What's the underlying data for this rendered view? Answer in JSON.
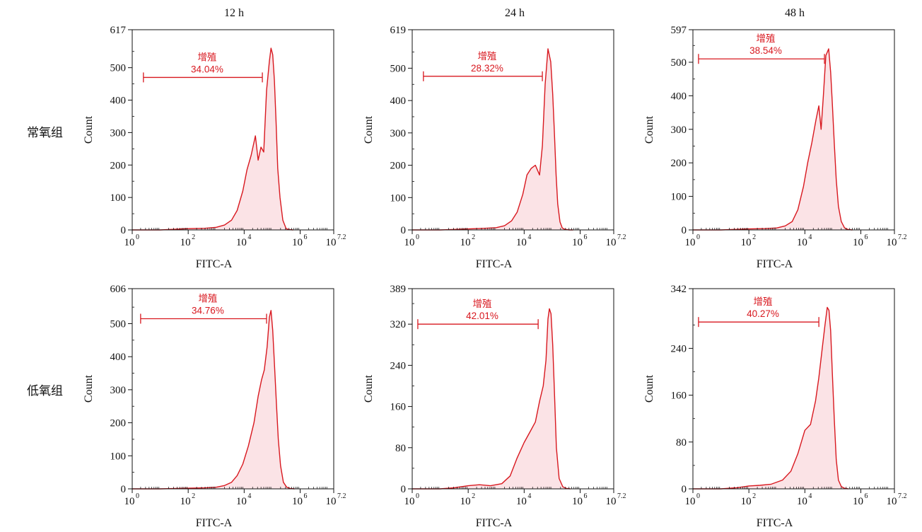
{
  "figure": {
    "column_titles": [
      "12 h",
      "24 h",
      "48 h"
    ],
    "row_labels": [
      "常氧组",
      "低氧组"
    ]
  },
  "chart_data": [
    {
      "type": "area",
      "row": "常氧组",
      "column": "12 h",
      "xlabel": "FITC-A",
      "ylabel": "Count",
      "x_scale": "log10",
      "xlim": [
        0,
        7.2
      ],
      "ylim": [
        0,
        617
      ],
      "yticks": [
        0,
        100,
        200,
        300,
        400,
        500,
        617
      ],
      "xticks": [
        0,
        2,
        4,
        6,
        7.2
      ],
      "gate": {
        "name": "增殖",
        "percent": "34.04%",
        "x_range": [
          0.4,
          4.65
        ],
        "y": 470
      },
      "series": [
        {
          "x": [
            0,
            1.0,
            2.0,
            2.6,
            3.0,
            3.3,
            3.55,
            3.75,
            3.95,
            4.1,
            4.25,
            4.4,
            4.5,
            4.6,
            4.7,
            4.8,
            4.9,
            4.96,
            5.02,
            5.08,
            5.14,
            5.2,
            5.28,
            5.38,
            5.5,
            5.6,
            5.75
          ],
          "y": [
            0,
            0,
            4,
            5,
            8,
            15,
            30,
            60,
            120,
            185,
            230,
            290,
            215,
            255,
            240,
            430,
            520,
            560,
            540,
            460,
            330,
            190,
            100,
            30,
            4,
            1,
            0
          ]
        }
      ]
    },
    {
      "type": "area",
      "row": "常氧组",
      "column": "24 h",
      "xlabel": "FITC-A",
      "ylabel": "Count",
      "x_scale": "log10",
      "xlim": [
        0,
        7.2
      ],
      "ylim": [
        0,
        619
      ],
      "yticks": [
        0,
        100,
        200,
        300,
        400,
        500,
        619
      ],
      "xticks": [
        0,
        2,
        4,
        6,
        7.2
      ],
      "gate": {
        "name": "增殖",
        "percent": "28.32%",
        "x_range": [
          0.4,
          4.65
        ],
        "y": 475
      },
      "series": [
        {
          "x": [
            0,
            1.0,
            2.0,
            2.6,
            3.0,
            3.3,
            3.55,
            3.75,
            3.95,
            4.1,
            4.25,
            4.4,
            4.55,
            4.65,
            4.75,
            4.85,
            4.95,
            5.02,
            5.08,
            5.14,
            5.2,
            5.28,
            5.36,
            5.45,
            5.6,
            5.75
          ],
          "y": [
            0,
            0,
            3,
            5,
            7,
            13,
            28,
            55,
            110,
            170,
            190,
            200,
            170,
            260,
            450,
            560,
            520,
            420,
            300,
            170,
            80,
            25,
            6,
            2,
            0,
            0
          ]
        }
      ]
    },
    {
      "type": "area",
      "row": "常氧组",
      "column": "48 h",
      "xlabel": "FITC-A",
      "ylabel": "Count",
      "x_scale": "log10",
      "xlim": [
        0,
        7.2
      ],
      "ylim": [
        0,
        597
      ],
      "yticks": [
        0,
        100,
        200,
        300,
        400,
        500,
        597
      ],
      "xticks": [
        0,
        2,
        4,
        6,
        7.2
      ],
      "gate": {
        "name": "增殖",
        "percent": "38.54%",
        "x_range": [
          0.2,
          4.7
        ],
        "y": 510
      },
      "series": [
        {
          "x": [
            0,
            1.0,
            2.0,
            2.6,
            3.0,
            3.3,
            3.55,
            3.75,
            3.95,
            4.1,
            4.25,
            4.4,
            4.5,
            4.58,
            4.66,
            4.75,
            4.85,
            4.92,
            4.98,
            5.05,
            5.12,
            5.2,
            5.3,
            5.42,
            5.55,
            5.7
          ],
          "y": [
            0,
            0,
            3,
            4,
            6,
            12,
            25,
            60,
            130,
            200,
            260,
            330,
            370,
            300,
            400,
            520,
            540,
            470,
            380,
            260,
            150,
            70,
            25,
            6,
            1,
            0
          ]
        }
      ]
    },
    {
      "type": "area",
      "row": "低氧组",
      "column": "12 h",
      "xlabel": "FITC-A",
      "ylabel": "Count",
      "x_scale": "log10",
      "xlim": [
        0,
        7.2
      ],
      "ylim": [
        0,
        606
      ],
      "yticks": [
        0,
        100,
        200,
        300,
        400,
        500,
        606
      ],
      "xticks": [
        0,
        2,
        4,
        6,
        7.2
      ],
      "gate": {
        "name": "增殖",
        "percent": "34.76%",
        "x_range": [
          0.3,
          4.8
        ],
        "y": 515
      },
      "series": [
        {
          "x": [
            0,
            1.0,
            2.0,
            2.6,
            3.0,
            3.3,
            3.55,
            3.75,
            3.95,
            4.15,
            4.35,
            4.5,
            4.62,
            4.72,
            4.82,
            4.9,
            4.96,
            5.02,
            5.08,
            5.15,
            5.22,
            5.3,
            5.4,
            5.52,
            5.65,
            5.8
          ],
          "y": [
            0,
            0,
            2,
            3,
            5,
            10,
            20,
            40,
            75,
            130,
            200,
            280,
            330,
            360,
            430,
            520,
            540,
            480,
            380,
            260,
            150,
            70,
            20,
            5,
            1,
            0
          ]
        }
      ]
    },
    {
      "type": "area",
      "row": "低氧组",
      "column": "24 h",
      "xlabel": "FITC-A",
      "ylabel": "Count",
      "x_scale": "log10",
      "xlim": [
        0,
        7.2
      ],
      "ylim": [
        0,
        389
      ],
      "yticks": [
        0,
        80,
        160,
        240,
        320,
        389
      ],
      "xticks": [
        0,
        2,
        4,
        6,
        7.2
      ],
      "gate": {
        "name": "增殖",
        "percent": "42.01%",
        "x_range": [
          0.2,
          4.5
        ],
        "y": 320
      },
      "series": [
        {
          "x": [
            0,
            1.0,
            1.5,
            2.0,
            2.4,
            2.8,
            3.2,
            3.5,
            3.75,
            4.0,
            4.2,
            4.4,
            4.55,
            4.68,
            4.78,
            4.85,
            4.9,
            4.96,
            5.02,
            5.08,
            5.15,
            5.25,
            5.38,
            5.5,
            5.65
          ],
          "y": [
            0,
            0,
            2,
            6,
            8,
            6,
            10,
            25,
            60,
            90,
            110,
            130,
            170,
            200,
            250,
            330,
            350,
            340,
            280,
            190,
            80,
            20,
            4,
            1,
            0
          ]
        }
      ]
    },
    {
      "type": "area",
      "row": "低氧组",
      "column": "48 h",
      "xlabel": "FITC-A",
      "ylabel": "Count",
      "x_scale": "log10",
      "xlim": [
        0,
        7.2
      ],
      "ylim": [
        0,
        342
      ],
      "yticks": [
        0,
        80,
        160,
        240,
        342
      ],
      "xticks": [
        0,
        2,
        4,
        6,
        7.2
      ],
      "gate": {
        "name": "增殖",
        "percent": "40.27%",
        "x_range": [
          0.2,
          4.5
        ],
        "y": 285
      },
      "series": [
        {
          "x": [
            0,
            1.0,
            1.6,
            2.0,
            2.4,
            2.8,
            3.2,
            3.5,
            3.75,
            4.0,
            4.2,
            4.38,
            4.5,
            4.62,
            4.72,
            4.8,
            4.86,
            4.92,
            4.98,
            5.05,
            5.12,
            5.2,
            5.3,
            5.42,
            5.55
          ],
          "y": [
            0,
            0,
            2,
            5,
            6,
            8,
            15,
            30,
            60,
            100,
            110,
            150,
            190,
            240,
            280,
            310,
            305,
            270,
            200,
            120,
            50,
            15,
            4,
            1,
            0
          ]
        }
      ]
    }
  ]
}
